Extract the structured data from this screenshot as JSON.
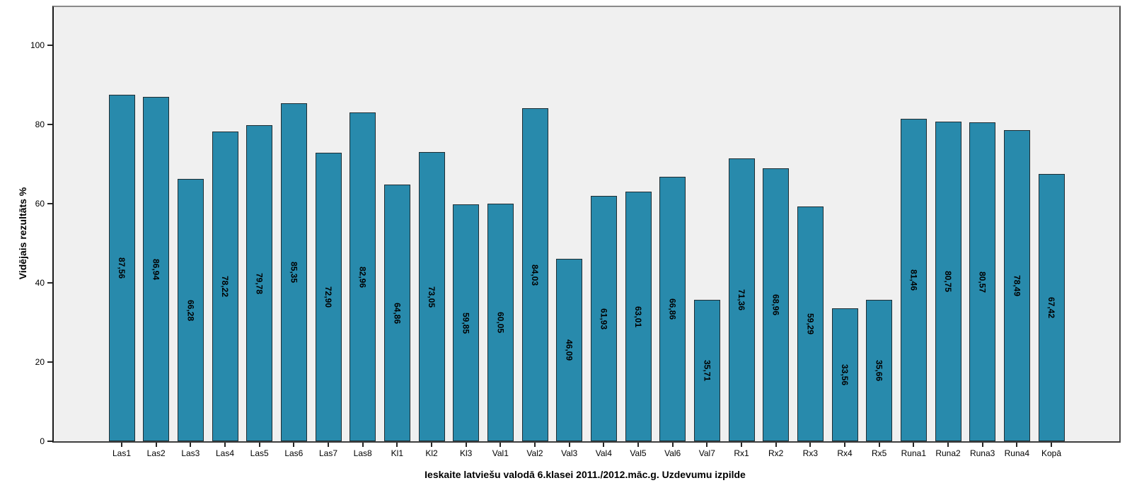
{
  "chart_data": {
    "type": "bar",
    "title": "",
    "xlabel": "Ieskaite latviešu valodā 6.klasei 2011./2012.māc.g. Uzdevumu izpilde",
    "ylabel": "Vidējais rezultāts %",
    "categories": [
      "Las1",
      "Las2",
      "Las3",
      "Las4",
      "Las5",
      "Las6",
      "Las7",
      "Las8",
      "Kl1",
      "Kl2",
      "Kl3",
      "Val1",
      "Val2",
      "Val3",
      "Val4",
      "Val5",
      "Val6",
      "Val7",
      "Rx1",
      "Rx2",
      "Rx3",
      "Rx4",
      "Rx5",
      "Runa1",
      "Runa2",
      "Runa3",
      "Runa4",
      "Kopā"
    ],
    "values": [
      87.56,
      86.94,
      66.28,
      78.22,
      79.78,
      85.35,
      72.9,
      82.96,
      64.86,
      73.05,
      59.85,
      60.05,
      84.03,
      46.09,
      61.93,
      63.01,
      66.86,
      35.71,
      71.36,
      68.96,
      59.29,
      33.56,
      35.66,
      81.46,
      80.75,
      80.57,
      78.49,
      67.42
    ],
    "value_labels": [
      "87,56",
      "86,94",
      "66,28",
      "78,22",
      "79,78",
      "85,35",
      "72,90",
      "82,96",
      "64,86",
      "73,05",
      "59,85",
      "60,05",
      "84,03",
      "46,09",
      "61,93",
      "63,01",
      "66,86",
      "35,71",
      "71,36",
      "68,96",
      "59,29",
      "33,56",
      "35,66",
      "81,46",
      "80,75",
      "80,57",
      "78,49",
      "67,42"
    ],
    "y_ticks": [
      0,
      20,
      40,
      60,
      80,
      100
    ],
    "ylim": [
      0,
      110
    ],
    "grid": false,
    "legend_position": "none",
    "value_label_rotation": "vertical",
    "colors": {
      "bar_fill": "#288aac",
      "bar_border": "#1f2d33",
      "plot_background": "#f0f0f0",
      "figure_background": "#ffffff",
      "text": "#000000"
    }
  }
}
